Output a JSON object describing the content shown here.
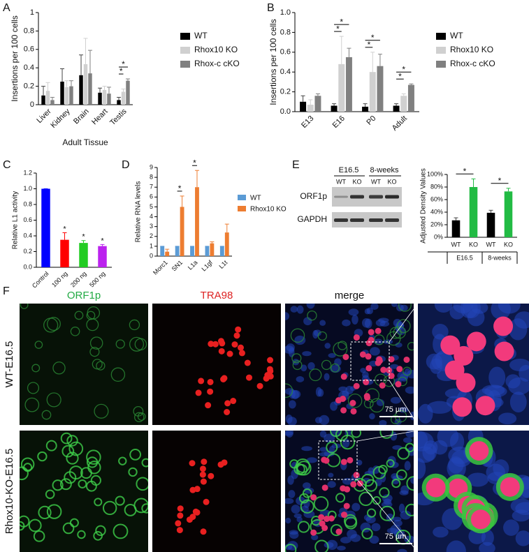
{
  "figure": {
    "panel_letters": [
      "A",
      "B",
      "C",
      "D",
      "E",
      "F"
    ],
    "blot": {
      "timepoints": [
        "E16.5",
        "8-weeks"
      ],
      "lanes": [
        "WT",
        "KO",
        "WT",
        "KO"
      ],
      "rows": [
        "ORF1p",
        "GAPDH"
      ]
    },
    "microscopy": {
      "channels": [
        "ORF1p",
        "TRA98",
        "merge"
      ],
      "samples": [
        "WT-E16.5",
        "Rhox10-KO-E16.5"
      ],
      "scale_bar": "75 µm"
    }
  },
  "chart_data": [
    {
      "type": "bar",
      "ylabel": "Insertions per 100 cells",
      "xlabel": "Adult Tissue",
      "categories": [
        "Liver",
        "Kidney",
        "Brain",
        "Heart",
        "Testis"
      ],
      "series": [
        {
          "name": "WT",
          "color": "#000000",
          "values": [
            0.1,
            0.25,
            0.32,
            0.13,
            0.05
          ],
          "errors": [
            0.1,
            0.14,
            0.22,
            0.05,
            0.03
          ]
        },
        {
          "name": "Rhox10 KO",
          "color": "#d0d0d0",
          "values": [
            0.15,
            0.19,
            0.44,
            0.16,
            0.14
          ],
          "errors": [
            0.09,
            0.07,
            0.28,
            0.04,
            0.03
          ]
        },
        {
          "name": "Rhox-c cKO",
          "color": "#808080",
          "values": [
            0.05,
            0.2,
            0.34,
            0.12,
            0.26
          ],
          "errors": [
            0.03,
            0.06,
            0.25,
            0.07,
            0.02
          ]
        }
      ],
      "ylim": [
        0,
        1
      ],
      "yticks": [
        0,
        0.2,
        0.4,
        0.6,
        0.8,
        1
      ],
      "legend": "right",
      "significance": [
        {
          "label": "*",
          "category": "Testis",
          "series": [
            "WT",
            "Rhox10 KO"
          ]
        },
        {
          "label": "*",
          "category": "Testis",
          "series": [
            "WT",
            "Rhox-c cKO"
          ]
        }
      ]
    },
    {
      "type": "bar",
      "ylabel": "Insertions per 100 cells",
      "categories": [
        "E13",
        "E16",
        "P0",
        "Adult"
      ],
      "series": [
        {
          "name": "WT",
          "color": "#000000",
          "values": [
            0.1,
            0.06,
            0.05,
            0.06
          ],
          "errors": [
            0.06,
            0.02,
            0.03,
            0.02
          ]
        },
        {
          "name": "Rhox10 KO",
          "color": "#d0d0d0",
          "values": [
            0.07,
            0.48,
            0.4,
            0.16
          ],
          "errors": [
            0.05,
            0.28,
            0.2,
            0.02
          ]
        },
        {
          "name": "Rhox-c cKO",
          "color": "#808080",
          "values": [
            0.16,
            0.55,
            0.46,
            0.27
          ],
          "errors": [
            0.02,
            0.09,
            0.12,
            0.01
          ]
        }
      ],
      "ylim": [
        0,
        1
      ],
      "yticks": [
        {
          "value": 0,
          "label": "0.0"
        },
        0.2,
        0.4,
        0.6,
        0.8,
        {
          "value": 1,
          "label": "1.0"
        }
      ],
      "legend": "right",
      "significance": [
        {
          "label": "*",
          "category": "E16",
          "series": [
            "WT",
            "Rhox10 KO"
          ]
        },
        {
          "label": "*",
          "category": "E16",
          "series": [
            "WT",
            "Rhox-c cKO"
          ]
        },
        {
          "label": "*",
          "category": "P0",
          "series": [
            "WT",
            "Rhox10 KO"
          ]
        },
        {
          "label": "*",
          "category": "P0",
          "series": [
            "WT",
            "Rhox-c cKO"
          ]
        },
        {
          "label": "*",
          "category": "Adult",
          "series": [
            "WT",
            "Rhox10 KO"
          ]
        },
        {
          "label": "*",
          "category": "Adult",
          "series": [
            "WT",
            "Rhox-c cKO"
          ]
        }
      ]
    },
    {
      "type": "bar",
      "ylabel": "Relative L1 activity",
      "categories": [
        "Control",
        "100 ng",
        "200 ng",
        "500 ng"
      ],
      "series": [
        {
          "values": [
            1,
            0.35,
            0.31,
            0.27
          ],
          "errors": [
            0,
            0.09,
            0.03,
            0.02
          ],
          "colors": [
            "#0000ff",
            "#ff0000",
            "#22cc22",
            "#bb22ee"
          ]
        }
      ],
      "ylim": [
        0,
        1.2
      ],
      "yticks": [
        {
          "value": 0,
          "label": "0.0"
        },
        0.2,
        0.4,
        0.6,
        0.8,
        {
          "value": 1,
          "label": "1.0"
        },
        1.2
      ],
      "significance": [
        {
          "label": "*",
          "category": "100 ng"
        },
        {
          "label": "*",
          "category": "200 ng"
        },
        {
          "label": "*",
          "category": "500 ng"
        }
      ]
    },
    {
      "type": "bar",
      "ylabel": "Relative RNA levels",
      "categories": [
        "Morc1",
        "SN1",
        "L1a",
        "L1gf",
        "L1t"
      ],
      "series": [
        {
          "name": "WT",
          "color": "#5b9bd5",
          "values": [
            1,
            1,
            1,
            1,
            1
          ],
          "errors": [
            0,
            0,
            0,
            0,
            0
          ]
        },
        {
          "name": "Rhox10 KO",
          "color": "#ed7d31",
          "values": [
            0.45,
            5,
            7,
            1.3,
            2.4
          ],
          "errors": [
            0.25,
            1.1,
            1.7,
            0.15,
            0.85
          ]
        }
      ],
      "ylim": [
        0,
        9
      ],
      "yticks": [
        0,
        1,
        2,
        3,
        4,
        5,
        6,
        7,
        8,
        9
      ],
      "legend": "right",
      "significance": [
        {
          "label": "*",
          "category": "SN1",
          "series": [
            "WT",
            "Rhox10 KO"
          ]
        },
        {
          "label": "*",
          "category": "L1a",
          "series": [
            "WT",
            "Rhox10 KO"
          ]
        }
      ]
    },
    {
      "type": "bar",
      "ylabel": "Adjusted Density Values",
      "categories": [
        "WT",
        "KO",
        "WT",
        "KO"
      ],
      "groups": [
        "E16.5",
        "8-weeks"
      ],
      "series": [
        {
          "values": [
            27,
            80,
            39,
            73
          ],
          "errors": [
            4,
            13,
            4,
            5
          ],
          "colors": [
            "#000000",
            "#22bb44",
            "#000000",
            "#22bb44"
          ]
        }
      ],
      "ylim": [
        0,
        100
      ],
      "yticks": [
        {
          "value": 0,
          "label": "0%"
        },
        {
          "value": 20,
          "label": "20%"
        },
        {
          "value": 40,
          "label": "40%"
        },
        {
          "value": 60,
          "label": "60%"
        },
        {
          "value": 80,
          "label": "80%"
        },
        {
          "value": 100,
          "label": "100%"
        }
      ],
      "significance": [
        {
          "label": "*",
          "group": "E16.5"
        },
        {
          "label": "*",
          "group": "8-weeks"
        }
      ]
    }
  ]
}
